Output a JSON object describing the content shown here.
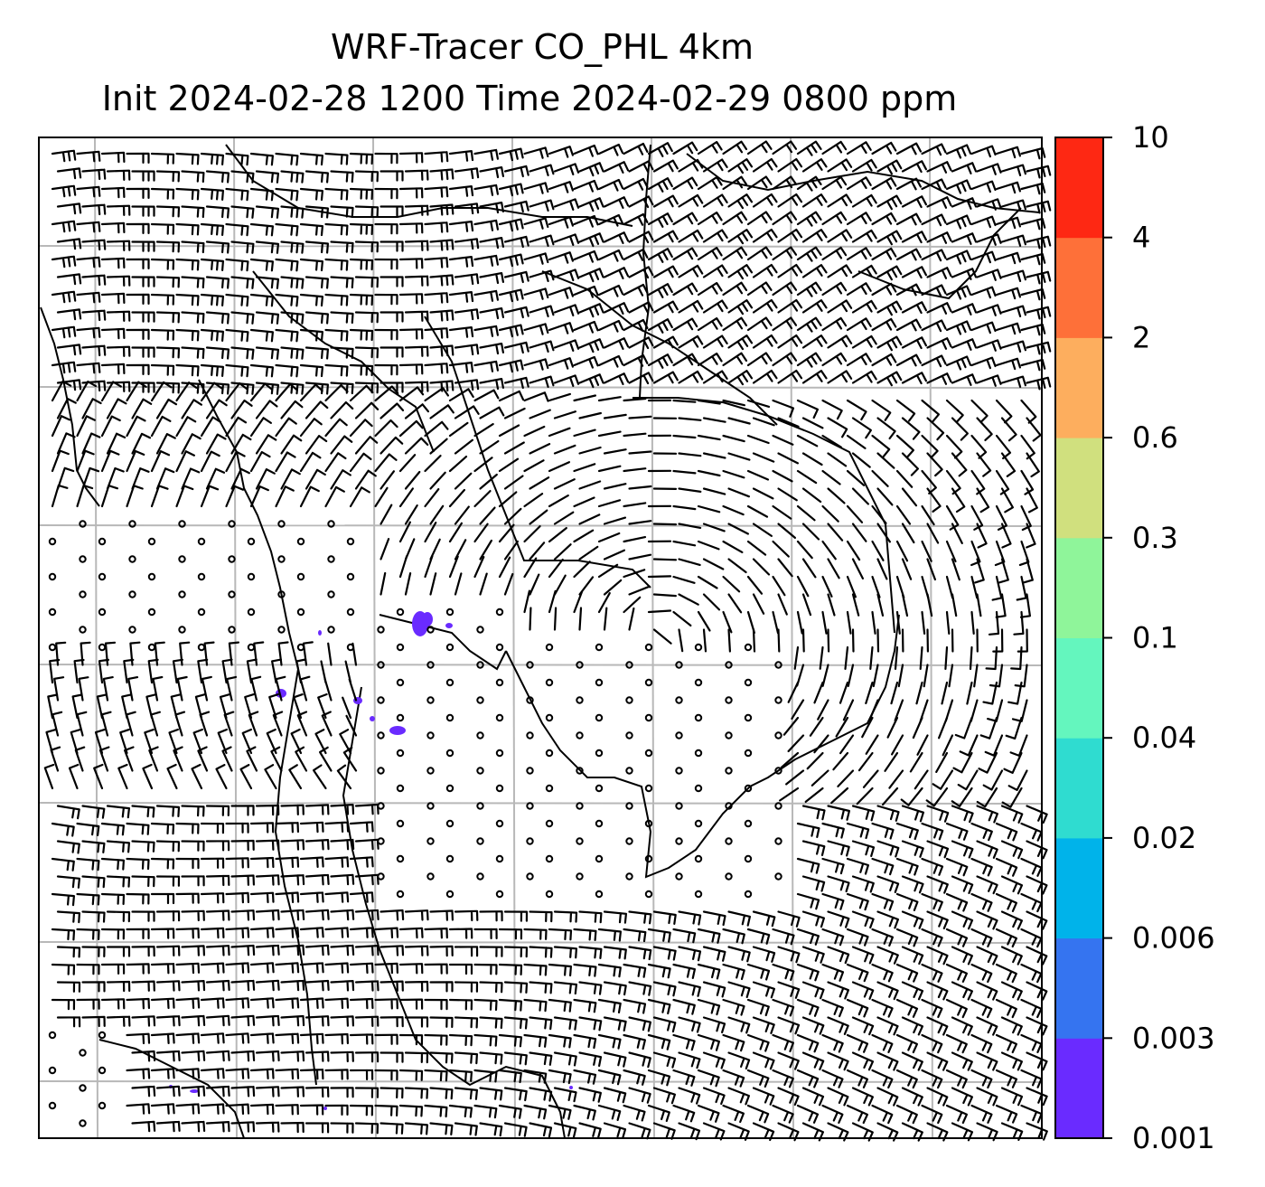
{
  "title": {
    "line1": "WRF-Tracer CO_PHL 4km",
    "line2": "Init 2024-02-28 1200 Time 2024-02-29 0800 ppm"
  },
  "colorbar": {
    "levels": [
      "0.001",
      "0.003",
      "0.006",
      "0.02",
      "0.04",
      "0.1",
      "0.3",
      "0.6",
      "2",
      "4",
      "10"
    ],
    "colors": [
      "#6a2bff",
      "#3574f0",
      "#00b3ea",
      "#2fdcd0",
      "#64f6be",
      "#8ff59a",
      "#d0e07e",
      "#fdae5e",
      "#fe7039",
      "#fe2813"
    ]
  },
  "map": {
    "background": "#ffffff",
    "gridline_color": "#b8b8b8",
    "coastline_color": "#000000",
    "tracer_color": "#6a2bff"
  }
}
